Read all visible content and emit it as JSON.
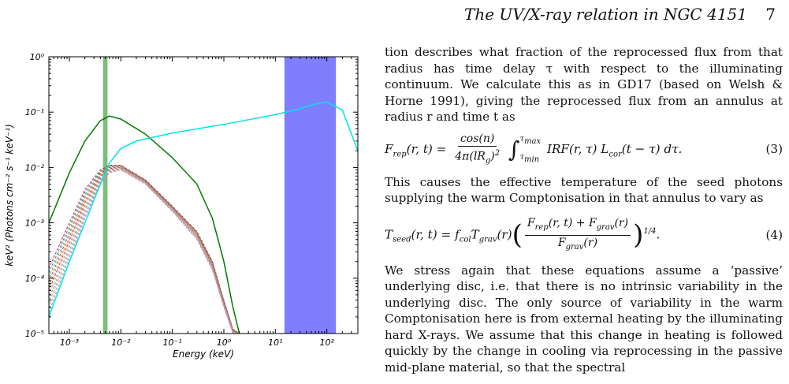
{
  "header": {
    "title": "The UV/X-ray relation in NGC 4151",
    "page": "7"
  },
  "body": {
    "para1": "tion describes what fraction of the reprocessed flux from that radius has time delay τ with respect to the illuminating continuum. We calculate this as in GD17 (based on Welsh & Horne 1991), giving the reprocessed flux from an annulus at radius r and time t as",
    "eq3_label": "(3)",
    "para2": "This causes the effective temperature of the seed photons supplying the warm Comptonisation in that annulus to vary as",
    "eq4_label": "(4)",
    "para3": "We stress again that these equations assume a ‘passive’ underlying disc, i.e. that there is no intrinsic variability in the underlying disc. The only source of variability in the warm Comptonisation here is from external heating by the illuminating hard X-rays. We assume that this change in heating is followed quickly by the change in cooling via reprocessing in the passive mid-plane material, so that the spectral"
  },
  "chart_data": {
    "type": "line",
    "xlabel": "Energy (keV)",
    "ylabel": "keV² (Photons cm⁻² s⁻¹ keV⁻¹)",
    "x_scale": "log",
    "y_scale": "log",
    "xlim": [
      0.0004,
      400
    ],
    "ylim": [
      1e-05,
      1
    ],
    "x_ticks": [
      "10⁻³",
      "10⁻²",
      "10⁻¹",
      "10⁰",
      "10¹",
      "10²"
    ],
    "y_ticks": [
      "10⁻⁵",
      "10⁻⁴",
      "10⁻³",
      "10⁻²",
      "10⁻¹",
      "10⁰"
    ],
    "bands": [
      {
        "x0": 0.0045,
        "x1": 0.0055,
        "color": "#7bbf7b"
      },
      {
        "x0": 15,
        "x1": 150,
        "color": "#7f7ffd"
      }
    ],
    "series": [
      {
        "color": "#007a00",
        "x": [
          0.0004,
          0.001,
          0.002,
          0.004,
          0.006,
          0.01,
          0.03,
          0.1,
          0.3,
          0.6,
          1,
          1.5,
          2
        ],
        "y": [
          0.001,
          0.008,
          0.03,
          0.07,
          0.085,
          0.075,
          0.04,
          0.015,
          0.005,
          0.0012,
          0.0002,
          3e-05,
          1e-05
        ]
      },
      {
        "color": "#00e5e5",
        "x": [
          0.0004,
          0.001,
          0.002,
          0.004,
          0.006,
          0.01,
          0.02,
          0.1,
          1,
          10,
          30,
          60,
          100,
          200,
          400
        ],
        "y": [
          2e-05,
          0.0002,
          0.001,
          0.005,
          0.012,
          0.022,
          0.03,
          0.042,
          0.06,
          0.09,
          0.115,
          0.14,
          0.15,
          0.11,
          0.02
        ]
      }
    ],
    "dashed_bundle": {
      "count": 12,
      "colors": [
        "#e41a1c",
        "#377eb8",
        "#4daf4a",
        "#984ea3",
        "#ff7f00",
        "#a65628",
        "#f781bf",
        "#999999",
        "#66c2a5",
        "#fc8d62",
        "#8da0cb",
        "#e78ac3"
      ],
      "x": [
        0.0004,
        0.001,
        0.002,
        0.004,
        0.006,
        0.01,
        0.03,
        0.1,
        0.3,
        0.6,
        1,
        1.5,
        2
      ],
      "y_top": [
        0.00015,
        0.001,
        0.004,
        0.009,
        0.011,
        0.011,
        0.006,
        0.002,
        0.0007,
        0.0002,
        4e-05,
        1.2e-05,
        1e-05
      ],
      "y_bottom": [
        2e-05,
        0.0002,
        0.0012,
        0.005,
        0.008,
        0.009,
        0.005,
        0.0016,
        0.0005,
        0.00014,
        3e-05,
        1e-05,
        1e-05
      ]
    }
  }
}
